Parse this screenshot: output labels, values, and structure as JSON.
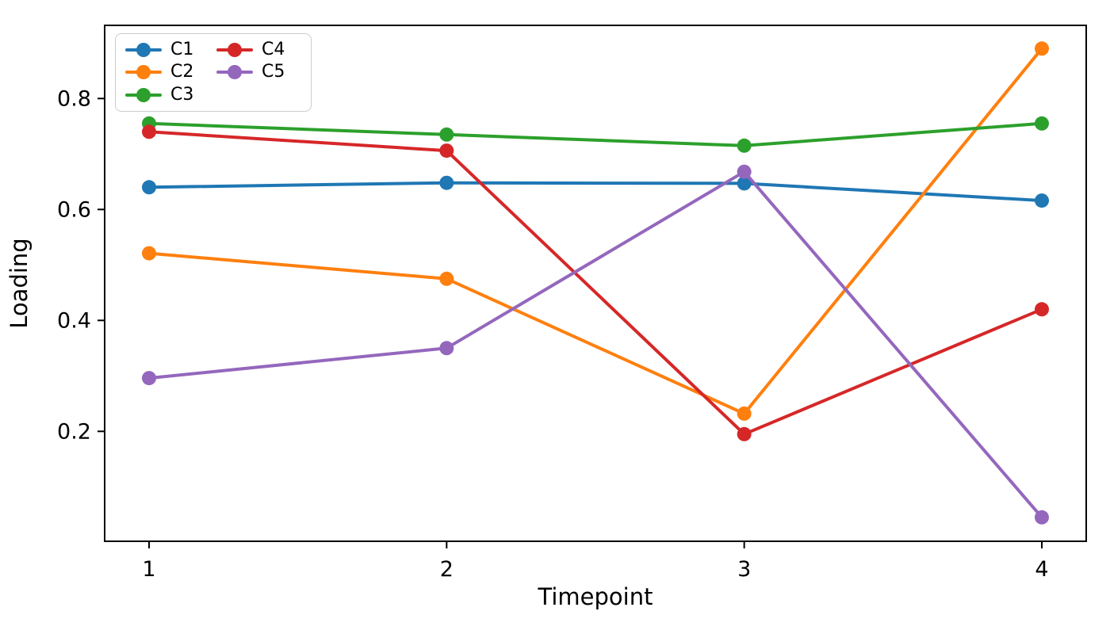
{
  "chart_data": {
    "type": "line",
    "title": "",
    "xlabel": "Timepoint",
    "ylabel": "Loading",
    "x": [
      1,
      2,
      3,
      4
    ],
    "xticks": [
      1,
      2,
      3,
      4
    ],
    "xtick_labels": [
      "1",
      "2",
      "3",
      "4"
    ],
    "yticks": [
      0.2,
      0.4,
      0.6,
      0.8
    ],
    "ytick_labels": [
      "0.2",
      "0.4",
      "0.6",
      "0.8"
    ],
    "xlim": [
      0.85,
      4.15
    ],
    "ylim": [
      0.002,
      0.932
    ],
    "grid": false,
    "legend_position": "upper-left",
    "legend_columns": 2,
    "series": [
      {
        "name": "C1",
        "color": "#1f77b4",
        "values": [
          0.64,
          0.648,
          0.647,
          0.616
        ]
      },
      {
        "name": "C2",
        "color": "#ff7f0e",
        "values": [
          0.521,
          0.475,
          0.232,
          0.89
        ]
      },
      {
        "name": "C3",
        "color": "#2ca02c",
        "values": [
          0.755,
          0.735,
          0.715,
          0.755
        ]
      },
      {
        "name": "C4",
        "color": "#d62728",
        "values": [
          0.74,
          0.706,
          0.195,
          0.42
        ]
      },
      {
        "name": "C5",
        "color": "#9467bd",
        "values": [
          0.296,
          0.35,
          0.668,
          0.045
        ]
      }
    ],
    "axis_color": "#000000",
    "background_color": "#ffffff"
  }
}
